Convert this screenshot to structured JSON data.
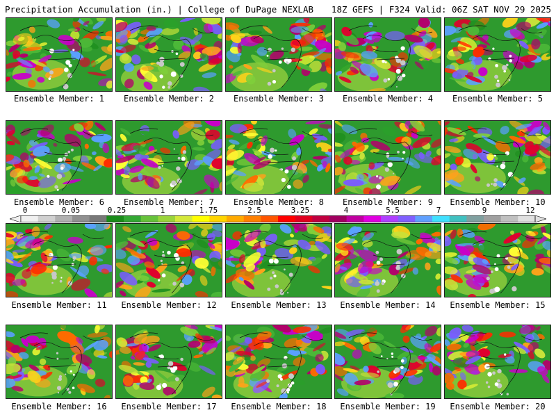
{
  "header": {
    "left": "Precipitation Accumulation (in.) | College of DuPage NEXLAB",
    "right": "18Z GEFS | F324 Valid: 06Z SAT NOV 29 2025"
  },
  "members": [
    {
      "label": "Ensemble Member: 1"
    },
    {
      "label": "Ensemble Member: 2"
    },
    {
      "label": "Ensemble Member: 3"
    },
    {
      "label": "Ensemble Member: 4"
    },
    {
      "label": "Ensemble Member: 5"
    },
    {
      "label": "Ensemble Member: 6"
    },
    {
      "label": "Ensemble Member: 7"
    },
    {
      "label": "Ensemble Member: 8"
    },
    {
      "label": "Ensemble Member: 9"
    },
    {
      "label": "Ensemble Member: 10"
    },
    {
      "label": "Ensemble Member: 11"
    },
    {
      "label": "Ensemble Member: 12"
    },
    {
      "label": "Ensemble Member: 13"
    },
    {
      "label": "Ensemble Member: 14"
    },
    {
      "label": "Ensemble Member: 15"
    },
    {
      "label": "Ensemble Member: 16"
    },
    {
      "label": "Ensemble Member: 17"
    },
    {
      "label": "Ensemble Member: 18"
    },
    {
      "label": "Ensemble Member: 19"
    },
    {
      "label": "Ensemble Member: 20"
    }
  ],
  "colorbar": {
    "ticks": [
      "0",
      "0.05",
      "0.25",
      "1",
      "1.75",
      "2.5",
      "3.25",
      "4",
      "5.5",
      "7",
      "9",
      "12"
    ],
    "colors": [
      "#f0f0f0",
      "#d0d0d0",
      "#b0b0b0",
      "#909090",
      "#787878",
      "#1a8c1a",
      "#33a833",
      "#66c23a",
      "#9ad43a",
      "#d4e83a",
      "#ffff00",
      "#ffd500",
      "#ffaa00",
      "#ff8000",
      "#ff5500",
      "#ff0000",
      "#e00020",
      "#c00040",
      "#a00060",
      "#c000a0",
      "#e000e0",
      "#b040ff",
      "#8060ff",
      "#60a0ff",
      "#40e0ff",
      "#40c0c0",
      "#80a0a0",
      "#a0a0a0",
      "#c0c0c0",
      "#e0e0e0"
    ]
  }
}
